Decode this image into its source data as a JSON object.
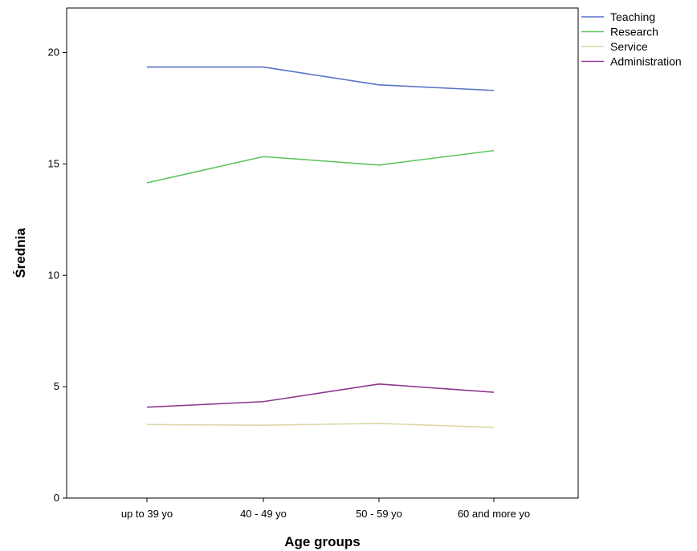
{
  "chart_data": {
    "type": "line",
    "title": "",
    "xlabel": "Age groups",
    "ylabel": "Średnia",
    "categories": [
      "up to 39 yo",
      "40 - 49 yo",
      "50 - 59 yo",
      "60 and more yo"
    ],
    "ylim": [
      0,
      22
    ],
    "yticks": [
      0,
      5,
      10,
      15,
      20
    ],
    "grid": false,
    "legend_position": "top-right",
    "series": [
      {
        "name": "Teaching",
        "color": "#5a74c8",
        "values": [
          19.35,
          19.35,
          18.55,
          18.3
        ]
      },
      {
        "name": "Research",
        "color": "#5ec45e",
        "values": [
          14.15,
          15.33,
          14.95,
          15.6
        ]
      },
      {
        "name": "Service",
        "color": "#ded7a6",
        "values": [
          3.3,
          3.27,
          3.35,
          3.17
        ]
      },
      {
        "name": "Administration",
        "color": "#8e3a8e",
        "values": [
          4.08,
          4.33,
          5.12,
          4.75
        ]
      }
    ]
  }
}
